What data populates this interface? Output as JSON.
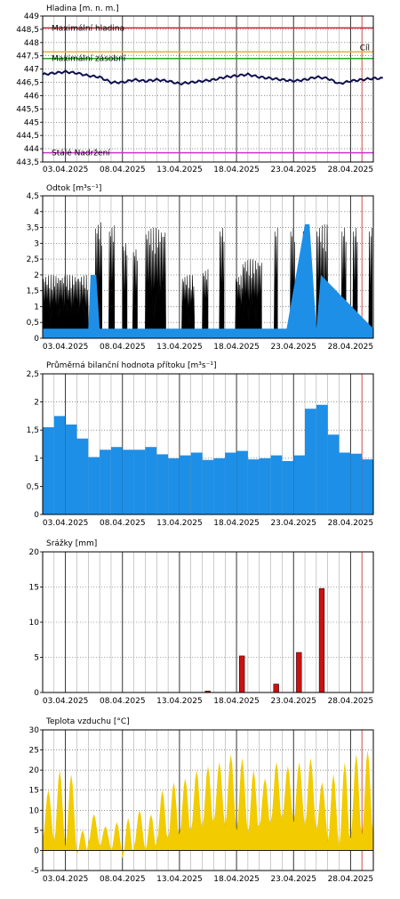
{
  "chart_data": [
    {
      "id": "hladina",
      "type": "line",
      "title": "Hladina [m. n. m.]",
      "ylim": [
        443.5,
        449
      ],
      "yticks": [
        443.5,
        444,
        444.5,
        445,
        445.5,
        446,
        446.5,
        447,
        447.5,
        448,
        448.5,
        449
      ],
      "ytick_labels": [
        "443,5",
        "444",
        "444,5",
        "445",
        "445,5",
        "446",
        "446,5",
        "447",
        "447,5",
        "448",
        "448,5",
        "449"
      ],
      "xlim": [
        "2025-04-01",
        "2025-04-30"
      ],
      "xtick_labels": [
        "03.04.2025",
        "08.04.2025",
        "13.04.2025",
        "18.04.2025",
        "23.04.2025",
        "28.04.2025"
      ],
      "grid": true,
      "reference_lines": [
        {
          "label": "Maximální hladina",
          "value": 448.55,
          "color": "#cc2233"
        },
        {
          "label": "Maximální zásobní",
          "value": 447.4,
          "color": "#22aa22"
        },
        {
          "label": "Stálé Nadržení",
          "value": 443.85,
          "color": "#cc33cc"
        },
        {
          "label": "Cíl",
          "value": 447.65,
          "color": "#e8b040"
        }
      ],
      "series": [
        {
          "color": "#101050",
          "x": [
            "2025-04-01",
            "2025-04-02",
            "2025-04-03",
            "2025-04-04",
            "2025-04-05",
            "2025-04-06",
            "2025-04-07",
            "2025-04-08",
            "2025-04-09",
            "2025-04-10",
            "2025-04-11",
            "2025-04-12",
            "2025-04-13",
            "2025-04-14",
            "2025-04-15",
            "2025-04-16",
            "2025-04-17",
            "2025-04-18",
            "2025-04-19",
            "2025-04-20",
            "2025-04-21",
            "2025-04-22",
            "2025-04-23",
            "2025-04-24",
            "2025-04-25",
            "2025-04-26",
            "2025-04-27",
            "2025-04-28",
            "2025-04-29",
            "2025-04-30"
          ],
          "y": [
            446.8,
            446.85,
            446.9,
            446.85,
            446.75,
            446.7,
            446.5,
            446.5,
            446.6,
            446.55,
            446.6,
            446.55,
            446.45,
            446.5,
            446.55,
            446.6,
            446.7,
            446.75,
            446.8,
            446.7,
            446.65,
            446.6,
            446.55,
            446.6,
            446.7,
            446.65,
            446.45,
            446.55,
            446.6,
            446.65
          ]
        }
      ]
    },
    {
      "id": "odtok",
      "type": "area",
      "title": "Odtok [m³s⁻¹]",
      "ylim": [
        0,
        4.5
      ],
      "yticks": [
        0,
        0.5,
        1,
        1.5,
        2,
        2.5,
        3,
        3.5,
        4,
        4.5
      ],
      "ytick_labels": [
        "0",
        "0,5",
        "1",
        "1,5",
        "2",
        "2,5",
        "3",
        "3,5",
        "4",
        "4,5"
      ],
      "xlim": [
        "2025-04-01",
        "2025-04-30"
      ],
      "xtick_labels": [
        "03.04.2025",
        "08.04.2025",
        "13.04.2025",
        "18.04.2025",
        "23.04.2025",
        "28.04.2025"
      ],
      "grid": true,
      "base_series": {
        "color": "#1e8fe6",
        "x": [
          "2025-04-01",
          "2025-04-05.0",
          "2025-04-05.2",
          "2025-04-05.7",
          "2025-04-06.0",
          "2025-04-06.3",
          "2025-04-12.0",
          "2025-04-12.3",
          "2025-04-16.0",
          "2025-04-16.4",
          "2025-04-22.0",
          "2025-04-22.4",
          "2025-04-24.0",
          "2025-04-24.4",
          "2025-04-25.0",
          "2025-04-25.4",
          "2025-04-30"
        ],
        "y": [
          0.3,
          0.3,
          2.0,
          2.0,
          0.3,
          0.3,
          0.3,
          0.3,
          0.3,
          0.3,
          0.3,
          0.3,
          3.6,
          3.6,
          0.3,
          2.0,
          0.3
        ]
      },
      "spike_series": {
        "color": "#000000",
        "bursts": [
          {
            "start": "2025-04-01.0",
            "end": "2025-04-05.0",
            "high": 2.0
          },
          {
            "start": "2025-04-05.6",
            "end": "2025-04-06.2",
            "high": 3.7
          },
          {
            "start": "2025-04-06.8",
            "end": "2025-04-07.3",
            "high": 3.6
          },
          {
            "start": "2025-04-08.0",
            "end": "2025-04-08.4",
            "high": 3.1
          },
          {
            "start": "2025-04-08.9",
            "end": "2025-04-09.3",
            "high": 2.9
          },
          {
            "start": "2025-04-10.0",
            "end": "2025-04-11.8",
            "high": 3.5
          },
          {
            "start": "2025-04-13.2",
            "end": "2025-04-14.3",
            "high": 2.0
          },
          {
            "start": "2025-04-15.0",
            "end": "2025-04-15.5",
            "high": 2.2
          },
          {
            "start": "2025-04-16.5",
            "end": "2025-04-16.9",
            "high": 3.6
          },
          {
            "start": "2025-04-17.9",
            "end": "2025-04-18.5",
            "high": 2.0
          },
          {
            "start": "2025-04-18.5",
            "end": "2025-04-20.2",
            "high": 2.5
          },
          {
            "start": "2025-04-21.3",
            "end": "2025-04-21.6",
            "high": 3.6
          },
          {
            "start": "2025-04-22.7",
            "end": "2025-04-23.1",
            "high": 3.6
          },
          {
            "start": "2025-04-23.8",
            "end": "2025-04-24.2",
            "high": 3.6
          },
          {
            "start": "2025-04-25.0",
            "end": "2025-04-26.0",
            "high": 3.6
          },
          {
            "start": "2025-04-27.2",
            "end": "2025-04-27.6",
            "high": 3.6
          },
          {
            "start": "2025-04-28.2",
            "end": "2025-04-28.6",
            "high": 3.6
          },
          {
            "start": "2025-04-29.6",
            "end": "2025-04-29.9",
            "high": 3.6
          }
        ]
      }
    },
    {
      "id": "pritok",
      "type": "bar",
      "title": "Průměrná bilanční hodnota přítoku   [m³s⁻¹]",
      "ylim": [
        0,
        2.5
      ],
      "yticks": [
        0,
        0.5,
        1,
        1.5,
        2,
        2.5
      ],
      "ytick_labels": [
        "0",
        "0,5",
        "1",
        "1,5",
        "2",
        "2,5"
      ],
      "xlim": [
        "2025-04-01",
        "2025-04-30"
      ],
      "xtick_labels": [
        "03.04.2025",
        "08.04.2025",
        "13.04.2025",
        "18.04.2025",
        "23.04.2025",
        "28.04.2025"
      ],
      "grid": true,
      "color": "#1e8fe6",
      "x": [
        "2025-04-01",
        "2025-04-02",
        "2025-04-03",
        "2025-04-04",
        "2025-04-05",
        "2025-04-06",
        "2025-04-07",
        "2025-04-08",
        "2025-04-09",
        "2025-04-10",
        "2025-04-11",
        "2025-04-12",
        "2025-04-13",
        "2025-04-14",
        "2025-04-15",
        "2025-04-16",
        "2025-04-17",
        "2025-04-18",
        "2025-04-19",
        "2025-04-20",
        "2025-04-21",
        "2025-04-22",
        "2025-04-23",
        "2025-04-24",
        "2025-04-25",
        "2025-04-26",
        "2025-04-27",
        "2025-04-28",
        "2025-04-29"
      ],
      "values": [
        1.55,
        1.75,
        1.6,
        1.35,
        1.02,
        1.15,
        1.2,
        1.15,
        1.15,
        1.2,
        1.07,
        1.0,
        1.05,
        1.1,
        0.97,
        1.0,
        1.1,
        1.13,
        0.98,
        1.0,
        1.05,
        0.95,
        1.05,
        1.88,
        1.95,
        1.42,
        1.1,
        1.08,
        0.98
      ]
    },
    {
      "id": "srazky",
      "type": "bar",
      "title": "Srážky [mm]",
      "ylim": [
        0,
        20
      ],
      "yticks": [
        0,
        5,
        10,
        15,
        20
      ],
      "ytick_labels": [
        "0",
        "5",
        "10",
        "15",
        "20"
      ],
      "xlim": [
        "2025-04-01",
        "2025-04-30"
      ],
      "xtick_labels": [
        "03.04.2025",
        "08.04.2025",
        "13.04.2025",
        "18.04.2025",
        "23.04.2025",
        "28.04.2025"
      ],
      "grid": true,
      "color": "#cc1111",
      "x": [
        "2025-04-15",
        "2025-04-18",
        "2025-04-21",
        "2025-04-23",
        "2025-04-25"
      ],
      "values": [
        0.2,
        5.2,
        1.2,
        5.7,
        14.8
      ]
    },
    {
      "id": "teplota",
      "type": "area",
      "title": "Teplota vzduchu [°C]",
      "ylim": [
        -5,
        30
      ],
      "yticks": [
        -5,
        0,
        5,
        10,
        15,
        20,
        25,
        30
      ],
      "ytick_labels": [
        "-5",
        "0",
        "5",
        "10",
        "15",
        "20",
        "25",
        "30"
      ],
      "xlim": [
        "2025-04-01",
        "2025-04-30"
      ],
      "xtick_labels": [
        "03.04.2025",
        "08.04.2025",
        "13.04.2025",
        "18.04.2025",
        "23.04.2025",
        "28.04.2025"
      ],
      "grid": true,
      "color": "#f2cc00",
      "daily_min": [
        3,
        2,
        1,
        -1,
        2,
        1,
        0,
        -2,
        1,
        0,
        2,
        3,
        4,
        5,
        6,
        7,
        6,
        5,
        4,
        6,
        7,
        8,
        7,
        6,
        5,
        2,
        1,
        3,
        4
      ],
      "daily_max": [
        15,
        20,
        19,
        5,
        9,
        6,
        7,
        8,
        10,
        9,
        15,
        17,
        18,
        20,
        21,
        22,
        24,
        23,
        20,
        18,
        22,
        21,
        22,
        23,
        17,
        19,
        22,
        24,
        25
      ]
    }
  ]
}
